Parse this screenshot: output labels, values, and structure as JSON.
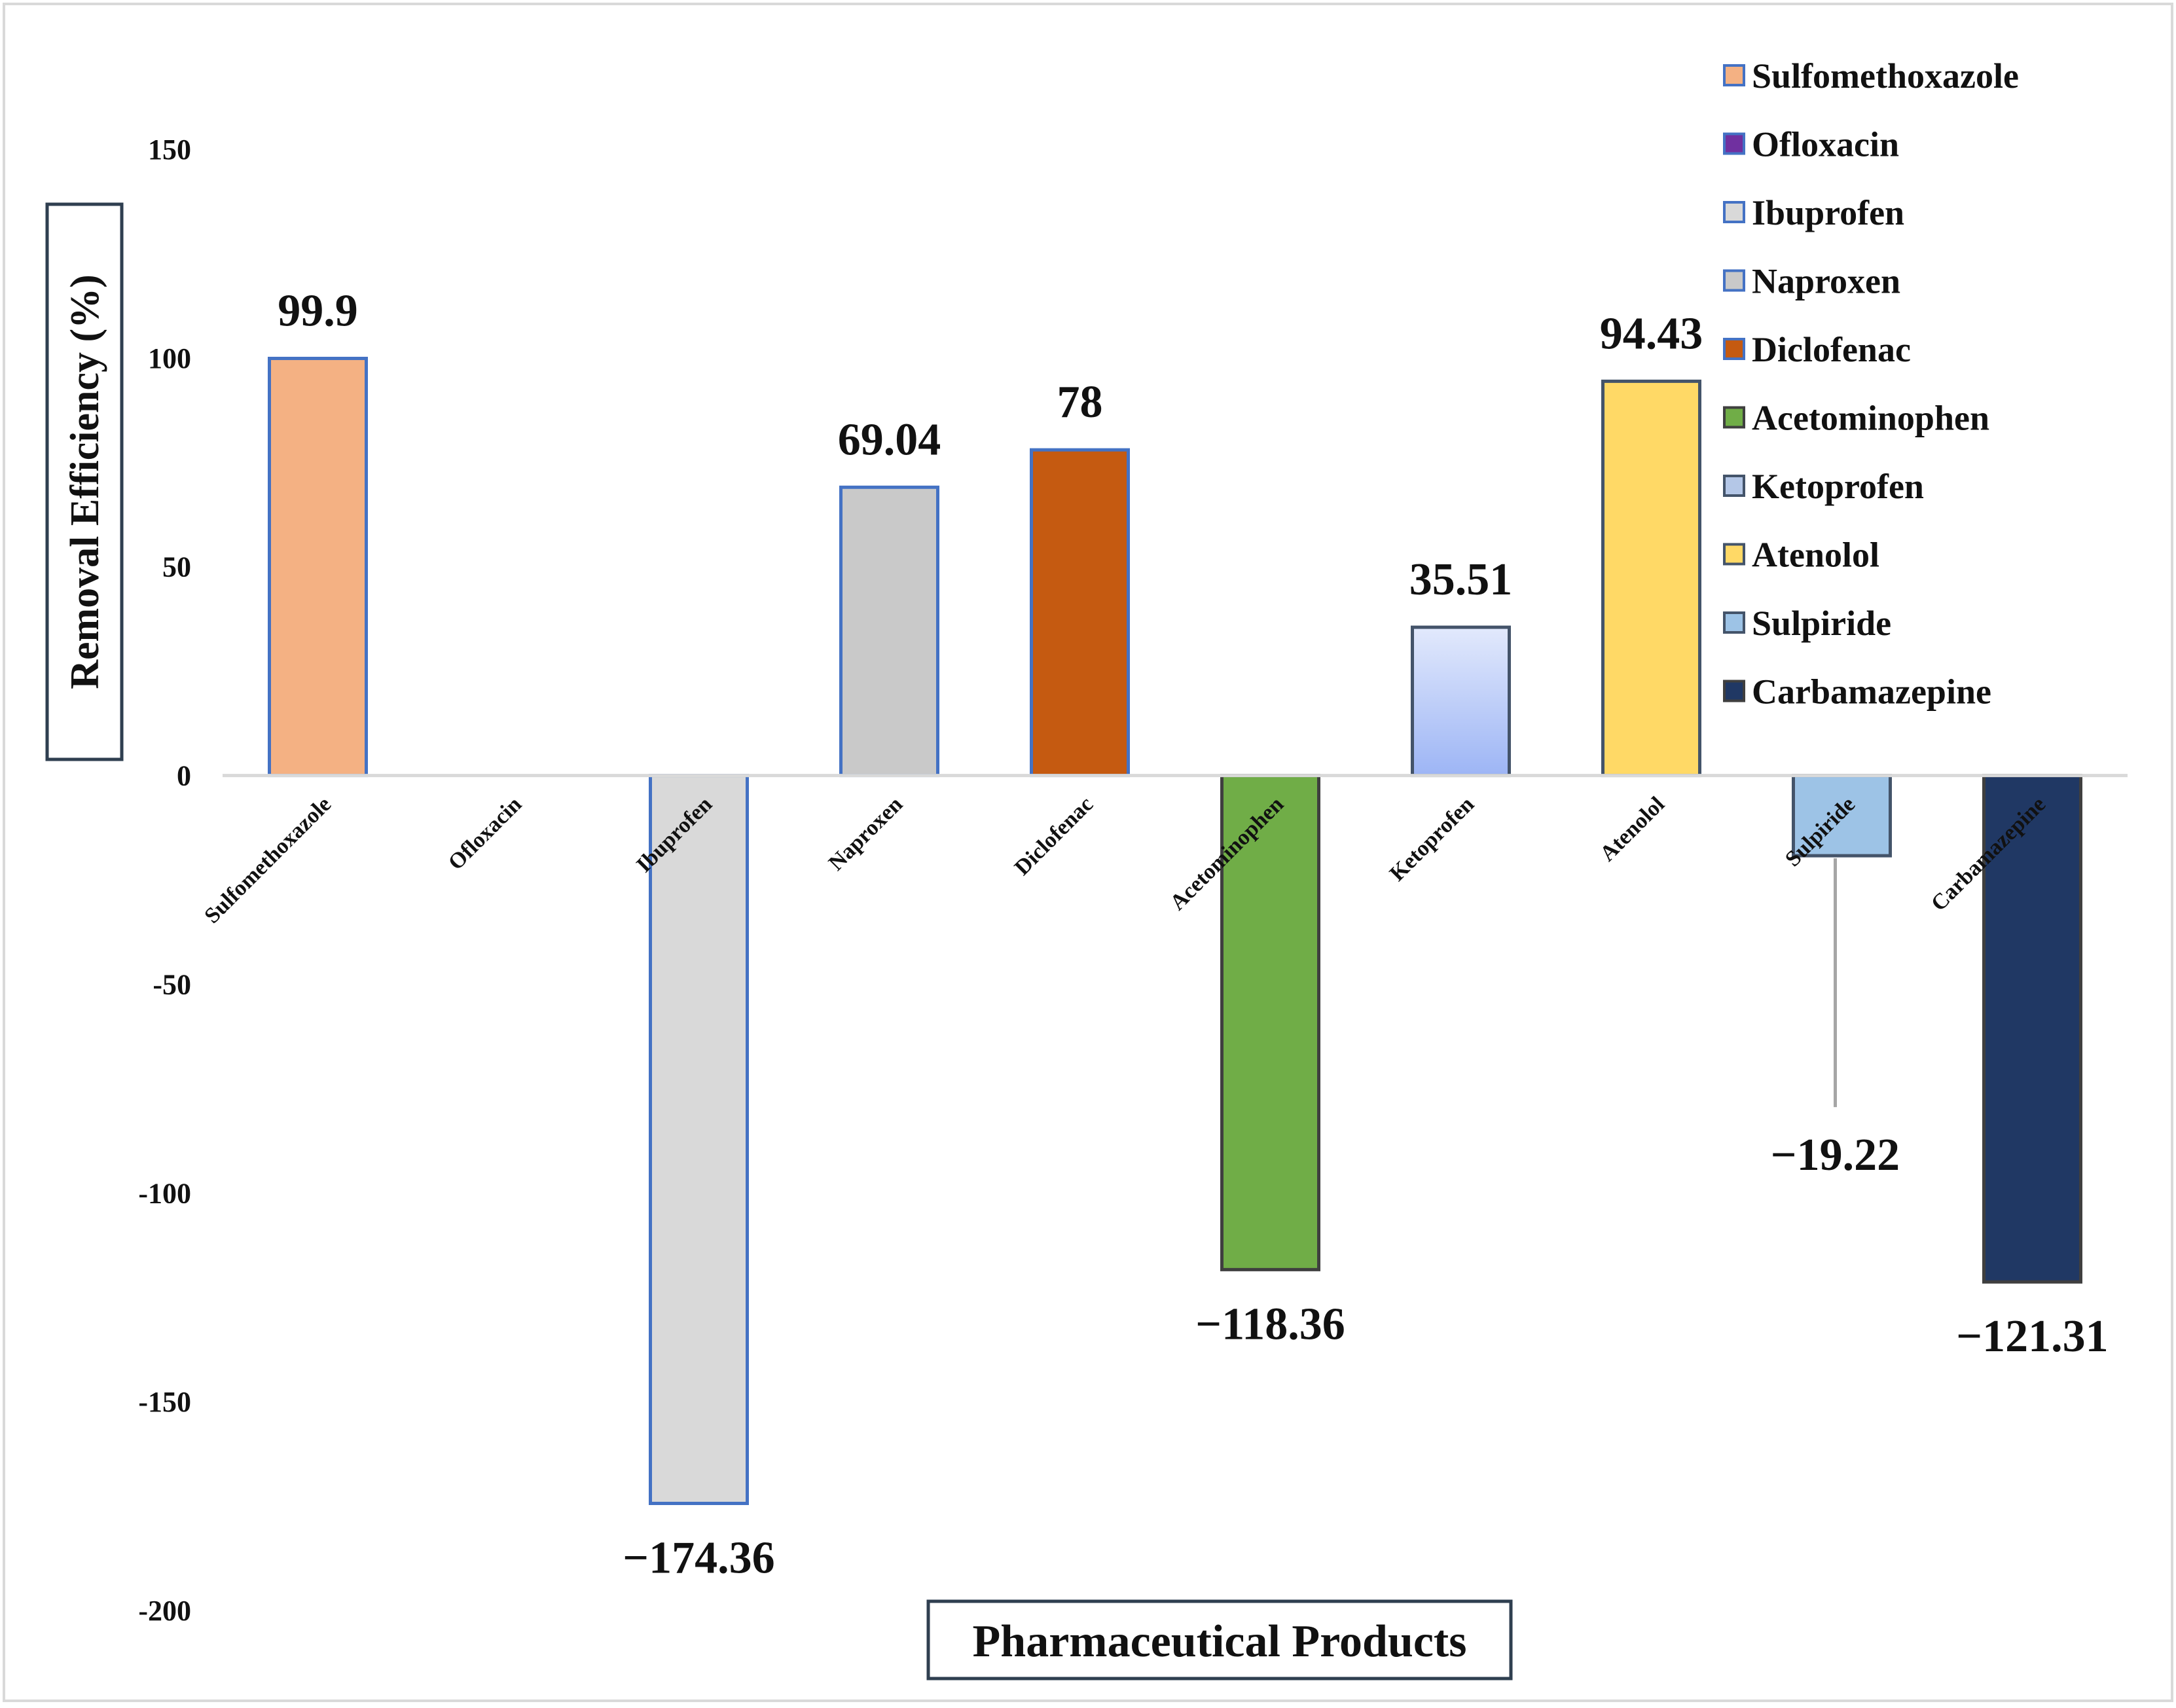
{
  "chart_data": {
    "type": "bar",
    "title": "",
    "xlabel": "Pharmaceutical Products",
    "ylabel": "Removal Efficiency (%)",
    "ylim": [
      -200,
      150
    ],
    "yticks": [
      150,
      100,
      50,
      0,
      -50,
      -100,
      -150,
      -200
    ],
    "ytick_labels": [
      "150",
      "100",
      "50",
      "0",
      "-50",
      "-100",
      "-150",
      "-200"
    ],
    "categories": [
      "Sulfomethoxazole",
      "Ofloxacin",
      "Ibuprofen",
      "Naproxen",
      "Diclofenac",
      "Acetominophen",
      "Ketoprofen",
      "Atenolol",
      "Sulpiride",
      "Carbamazepine"
    ],
    "values": [
      99.9,
      0,
      -174.36,
      69.04,
      78,
      -118.36,
      35.51,
      94.43,
      -19.22,
      -121.31
    ],
    "data_labels": [
      "99.9",
      "",
      "−174.36",
      "69.04",
      "78",
      "−118.36",
      "35.51",
      "94.43",
      "−19.22",
      "−121.31"
    ],
    "colors": [
      "#F4B183",
      "#7030A0",
      "#D9D9D9",
      "#C9C9C9",
      "#C55A11",
      "#70AD47",
      "#B4C7E7",
      "#FFD966",
      "#9DC3E6",
      "#203864"
    ],
    "legend": [
      "Sulfomethoxazole",
      "Ofloxacin",
      "Ibuprofen",
      "Naproxen",
      "Diclofenac",
      "Acetominophen",
      "Ketoprofen",
      "Atenolol",
      "Sulpiride",
      "Carbamazepine"
    ],
    "legend_position": "top-right",
    "grid": false
  }
}
